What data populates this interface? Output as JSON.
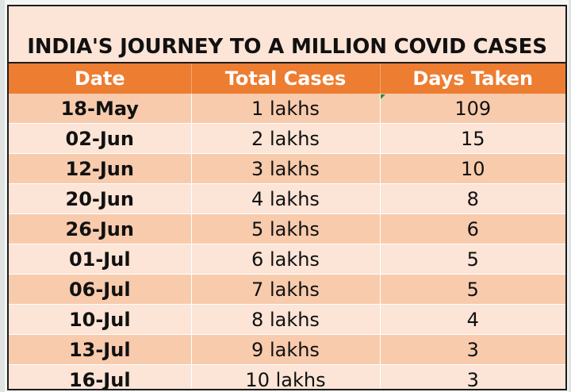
{
  "title": "INDIA'S JOURNEY TO A MILLION COVID CASES",
  "columns": [
    "Date",
    "Total Cases",
    "Days Taken"
  ],
  "rows": [
    {
      "date": "18-May",
      "cases": "1 lakhs",
      "days": "109"
    },
    {
      "date": "02-Jun",
      "cases": "2 lakhs",
      "days": "15"
    },
    {
      "date": "12-Jun",
      "cases": "3 lakhs",
      "days": "10"
    },
    {
      "date": "20-Jun",
      "cases": "4 lakhs",
      "days": "8"
    },
    {
      "date": "26-Jun",
      "cases": "5 lakhs",
      "days": "6"
    },
    {
      "date": "01-Jul",
      "cases": "6 lakhs",
      "days": "5"
    },
    {
      "date": "06-Jul",
      "cases": "7 lakhs",
      "days": "5"
    },
    {
      "date": "10-Jul",
      "cases": "8 lakhs",
      "days": "4"
    },
    {
      "date": "13-Jul",
      "cases": "9 lakhs",
      "days": "3"
    },
    {
      "date": "16-Jul",
      "cases": "10 lakhs",
      "days": "3"
    }
  ],
  "colors": {
    "header": "#ed7d31",
    "band_dark": "#f8cbad",
    "band_light": "#fce4d6",
    "marker": "#2e8b2e"
  }
}
